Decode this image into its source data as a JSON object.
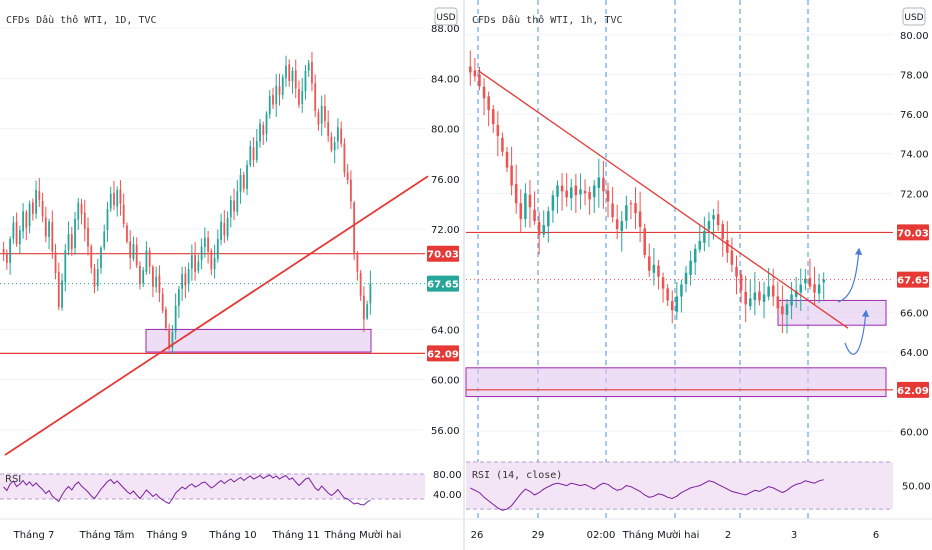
{
  "colors": {
    "up": "#26a69a",
    "down": "#ef5350",
    "resistance_line": "#e53935",
    "trendline": "#e53935",
    "zone_fill": "#e1c8f0",
    "zone_border": "#9c27b0",
    "rsi_line": "#7b1fa2",
    "rsi_band": "#f3e5f5",
    "dashed_line": "#4a90e2",
    "forecast_arrow": "#4a7bd8",
    "last_price_tag": "#26a69a",
    "level_tag": "#e53935",
    "grid": "#f0f3fa",
    "axis_text": "#131722",
    "label_text": "#333333"
  },
  "chart_data": [
    {
      "type": "candlestick",
      "title": "CFDs Dầu thô WTI, 1D, TVC",
      "currency": "USD",
      "y_ticks": [
        "88.00",
        "84.00",
        "80.00",
        "76.00",
        "72.00",
        "64.00",
        "60.00",
        "56.00"
      ],
      "y_range": [
        53.6,
        89.6
      ],
      "x_ticks": [
        "Tháng 7",
        "Tháng Tám",
        "Tháng 9",
        "Tháng 10",
        "Tháng 11",
        "Tháng Mười hai"
      ],
      "price_levels": [
        {
          "label": "70.03",
          "value": 70.03
        },
        {
          "label": "62.09",
          "value": 62.09
        }
      ],
      "last_price": {
        "label": "67.65",
        "value": 67.65
      },
      "support_zone": {
        "from": 62.2,
        "to": 64.0
      },
      "trendline": {
        "start": 54.0,
        "end": 76.2
      },
      "closes": [
        70.1,
        69.3,
        71.2,
        72.5,
        70.8,
        71.9,
        73.4,
        72.1,
        74.0,
        73.2,
        75.1,
        74.3,
        73.0,
        71.4,
        72.6,
        70.2,
        68.5,
        65.8,
        67.9,
        70.3,
        71.6,
        70.4,
        72.8,
        74.1,
        73.2,
        72.0,
        70.6,
        68.9,
        67.4,
        68.8,
        70.5,
        71.8,
        73.6,
        74.8,
        73.9,
        75.1,
        74.0,
        72.4,
        71.0,
        69.7,
        70.8,
        69.1,
        67.6,
        68.7,
        70.3,
        69.0,
        67.4,
        68.2,
        66.9,
        65.5,
        64.1,
        62.5,
        63.8,
        65.9,
        67.2,
        68.4,
        67.5,
        68.8,
        69.9,
        68.6,
        69.4,
        70.6,
        71.3,
        70.2,
        68.8,
        69.7,
        71.2,
        72.6,
        71.5,
        72.9,
        74.3,
        73.4,
        75.0,
        76.3,
        75.2,
        77.1,
        78.6,
        77.5,
        79.0,
        80.4,
        79.5,
        81.2,
        82.6,
        81.9,
        83.4,
        82.7,
        84.1,
        85.0,
        83.8,
        84.6,
        83.2,
        81.9,
        83.0,
        84.6,
        85.2,
        83.6,
        81.4,
        80.3,
        81.8,
        80.6,
        79.4,
        78.3,
        78.9,
        80.1,
        78.8,
        76.5,
        75.9,
        74.2,
        70.1,
        68.6,
        66.7,
        64.8,
        66.0,
        67.65
      ],
      "rsi": {
        "ticks": [
          "80.00",
          "40.00"
        ],
        "values": [
          54,
          47,
          60,
          66,
          55,
          60,
          67,
          58,
          64,
          56,
          62,
          55,
          49,
          41,
          47,
          36,
          30,
          25,
          38,
          48,
          55,
          48,
          58,
          64,
          56,
          50,
          44,
          36,
          31,
          40,
          50,
          57,
          65,
          69,
          61,
          66,
          59,
          52,
          45,
          40,
          46,
          38,
          31,
          39,
          48,
          42,
          35,
          40,
          33,
          28,
          24,
          21,
          30,
          42,
          48,
          54,
          50,
          56,
          60,
          54,
          57,
          62,
          64,
          58,
          52,
          56,
          62,
          67,
          61,
          66,
          70,
          64,
          69,
          73,
          67,
          72,
          76,
          70,
          73,
          77,
          71,
          75,
          78,
          72,
          76,
          70,
          74,
          77,
          69,
          72,
          64,
          57,
          63,
          70,
          72,
          62,
          52,
          47,
          56,
          49,
          42,
          37,
          42,
          49,
          40,
          32,
          30,
          25,
          20,
          22,
          19,
          18,
          24,
          28
        ]
      }
    },
    {
      "type": "candlestick",
      "title": "CFDs Dầu thô WTI, 1h, TVC",
      "currency": "USD",
      "y_ticks": [
        "80.00",
        "78.00",
        "76.00",
        "74.00",
        "72.00",
        "66.00",
        "64.00",
        "60.00"
      ],
      "y_range": [
        58.55,
        81.35
      ],
      "x_ticks": [
        "26",
        "29",
        "02:00",
        "Tháng Mười hai",
        "2",
        "3",
        "6"
      ],
      "price_levels": [
        {
          "label": "70.03",
          "value": 70.03
        },
        {
          "label": "62.09",
          "value": 62.09
        }
      ],
      "last_price": {
        "label": "67.65",
        "value": 67.65
      },
      "zones": [
        {
          "from": 65.35,
          "to": 66.6
        },
        {
          "from": 61.75,
          "to": 63.2
        }
      ],
      "trendline": {
        "start": 78.2,
        "end": 65.2
      },
      "closes": [
        78.1,
        77.9,
        77.4,
        76.8,
        76.2,
        75.5,
        74.9,
        74.1,
        73.3,
        72.4,
        71.5,
        70.7,
        72.0,
        71.3,
        70.6,
        69.9,
        70.4,
        71.1,
        71.9,
        72.4,
        72.1,
        71.8,
        72.3,
        71.9,
        72.2,
        72.0,
        71.7,
        72.4,
        72.8,
        72.1,
        71.6,
        70.8,
        70.2,
        70.6,
        71.4,
        71.5,
        71.0,
        70.3,
        68.9,
        68.1,
        68.4,
        67.8,
        67.2,
        66.6,
        66.1,
        66.8,
        67.4,
        68.0,
        68.6,
        69.2,
        69.6,
        70.1,
        70.6,
        70.9,
        70.4,
        69.7,
        69.0,
        68.4,
        67.8,
        67.1,
        66.4,
        66.7,
        67.0,
        66.6,
        66.9,
        67.3,
        66.8,
        66.2,
        65.9,
        66.4,
        66.9,
        67.1,
        67.4,
        67.7,
        67.3,
        67.0,
        67.4,
        67.65
      ],
      "forecast_arrows": 2,
      "rsi": {
        "ticks": [
          "50.00"
        ],
        "values": [
          48,
          46,
          44,
          40,
          37,
          34,
          31,
          29,
          30,
          33,
          38,
          43,
          47,
          45,
          42,
          44,
          47,
          49,
          51,
          52,
          51,
          50,
          52,
          51,
          50,
          51,
          49,
          47,
          50,
          52,
          51,
          48,
          46,
          47,
          50,
          49,
          47,
          45,
          42,
          40,
          41,
          43,
          42,
          40,
          39,
          41,
          44,
          46,
          48,
          49,
          50,
          52,
          54,
          53,
          51,
          49,
          47,
          45,
          44,
          43,
          42,
          44,
          46,
          45,
          47,
          49,
          48,
          46,
          44,
          46,
          49,
          51,
          52,
          54,
          53,
          52,
          54,
          55
        ]
      }
    }
  ]
}
